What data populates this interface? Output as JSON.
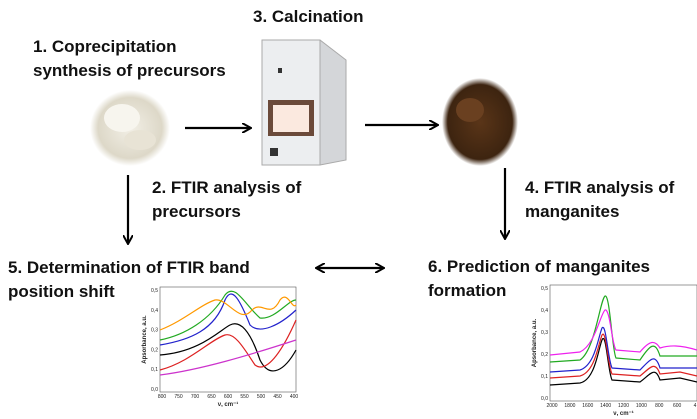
{
  "steps": [
    {
      "lines": [
        "1. Coprecipitation",
        "synthesis of precursors"
      ]
    },
    {
      "lines": [
        "2. FTIR analysis of",
        "precursors"
      ]
    },
    {
      "lines": [
        "3. Calcination"
      ]
    },
    {
      "lines": [
        "4. FTIR analysis of",
        "manganites"
      ]
    },
    {
      "lines": [
        "5. Determination of FTIR band",
        "position shift"
      ]
    },
    {
      "lines": [
        "6. Prediction of manganites",
        "formation"
      ]
    }
  ],
  "plots": [
    {
      "ylabel": "Apsorbance, a.u.",
      "xlabel": "ν, cm⁻¹",
      "yticks": [
        "0,5",
        "0,4",
        "0,3",
        "0,2",
        "0,1",
        "0,0"
      ],
      "xticks": [
        "800",
        "750",
        "700",
        "650",
        "600",
        "550",
        "500",
        "450",
        "400"
      ]
    },
    {
      "ylabel": "Apsorbance, a.u.",
      "xlabel": "ν, cm⁻¹",
      "yticks": [
        "0,5",
        "0,4",
        "0,3",
        "0,2",
        "0,1",
        "0,0"
      ],
      "xticks": [
        "2000",
        "1800",
        "1600",
        "1400",
        "1200",
        "1000",
        "800",
        "600",
        "4"
      ]
    }
  ]
}
